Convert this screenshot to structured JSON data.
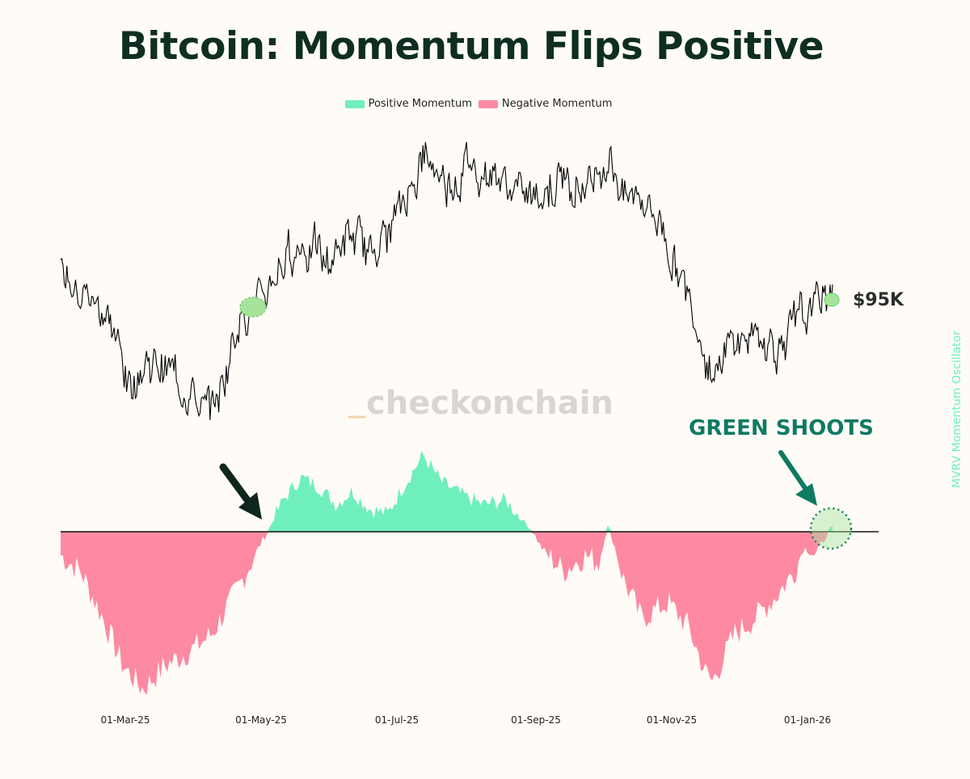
{
  "title": "Bitcoin: Momentum Flips Positive",
  "legend": {
    "positive_label": "Positive Momentum",
    "negative_label": "Negative Momentum",
    "positive_color": "#6ff0bb",
    "negative_color": "#fd8aa2"
  },
  "annotations": {
    "price_label": "$95K",
    "green_shoots": "GREEN SHOOTS",
    "watermark": "checkonchain",
    "right_axis_label": "MVRV Momentum Oscillator"
  },
  "colors": {
    "title": "#0f2e22",
    "price_line": "#000000",
    "annotation_green": "#0e7a62",
    "arrow_dark": "#10261d",
    "highlight_fill": "#a7e39a",
    "watermark": "#d9d5d1"
  },
  "chart_data": {
    "type": "line",
    "x_tick_labels": [
      "01-Mar-25",
      "01-May-25",
      "01-Jul-25",
      "01-Sep-25",
      "01-Nov-25",
      "01-Jan-26"
    ],
    "price_series": {
      "x": [
        "2025-02-01",
        "2025-02-10",
        "2025-02-20",
        "2025-03-01",
        "2025-03-03",
        "2025-03-10",
        "2025-03-20",
        "2025-04-01",
        "2025-04-07",
        "2025-04-15",
        "2025-04-22",
        "2025-05-01",
        "2025-05-10",
        "2025-05-20",
        "2025-06-01",
        "2025-06-10",
        "2025-06-20",
        "2025-07-01",
        "2025-07-10",
        "2025-07-14",
        "2025-07-25",
        "2025-08-05",
        "2025-08-14",
        "2025-08-25",
        "2025-09-01",
        "2025-09-15",
        "2025-09-25",
        "2025-10-06",
        "2025-10-12",
        "2025-10-20",
        "2025-10-29",
        "2025-11-04",
        "2025-11-14",
        "2025-11-21",
        "2025-12-01",
        "2025-12-10",
        "2025-12-20",
        "2026-01-01",
        "2026-01-08",
        "2026-01-14"
      ],
      "y": [
        0.79,
        0.75,
        0.72,
        0.63,
        0.57,
        0.62,
        0.61,
        0.57,
        0.52,
        0.58,
        0.71,
        0.72,
        0.79,
        0.84,
        0.8,
        0.85,
        0.82,
        0.87,
        0.96,
        0.99,
        0.95,
        0.98,
        0.96,
        0.93,
        0.92,
        0.96,
        0.94,
        1.0,
        0.92,
        0.93,
        0.87,
        0.8,
        0.7,
        0.6,
        0.66,
        0.67,
        0.65,
        0.7,
        0.73,
        0.76
      ],
      "note": "relative price level (axis unlabeled)"
    },
    "momentum_series": {
      "x": [
        "2025-02-01",
        "2025-02-10",
        "2025-02-20",
        "2025-03-01",
        "2025-03-10",
        "2025-03-20",
        "2025-04-01",
        "2025-04-10",
        "2025-04-22",
        "2025-05-01",
        "2025-05-05",
        "2025-05-12",
        "2025-05-20",
        "2025-05-28",
        "2025-06-05",
        "2025-06-12",
        "2025-06-20",
        "2025-06-28",
        "2025-07-05",
        "2025-07-14",
        "2025-07-22",
        "2025-08-01",
        "2025-08-10",
        "2025-08-20",
        "2025-08-28",
        "2025-09-05",
        "2025-09-15",
        "2025-09-25",
        "2025-10-01",
        "2025-10-05",
        "2025-10-12",
        "2025-10-20",
        "2025-11-01",
        "2025-11-10",
        "2025-11-18",
        "2025-11-21",
        "2025-12-01",
        "2025-12-10",
        "2025-12-20",
        "2025-12-28",
        "2026-01-01",
        "2026-01-06",
        "2026-01-10",
        "2026-01-14"
      ],
      "y": [
        -0.15,
        -0.25,
        -0.55,
        -0.85,
        -1.0,
        -0.85,
        -0.75,
        -0.65,
        -0.35,
        -0.1,
        0.0,
        0.35,
        0.6,
        0.5,
        0.3,
        0.45,
        0.25,
        0.2,
        0.5,
        0.85,
        0.55,
        0.4,
        0.3,
        0.35,
        0.12,
        -0.1,
        -0.25,
        -0.15,
        -0.2,
        0.06,
        -0.3,
        -0.55,
        -0.45,
        -0.6,
        -0.9,
        -0.95,
        -0.65,
        -0.55,
        -0.4,
        -0.25,
        -0.1,
        -0.15,
        -0.05,
        0.05
      ]
    }
  }
}
